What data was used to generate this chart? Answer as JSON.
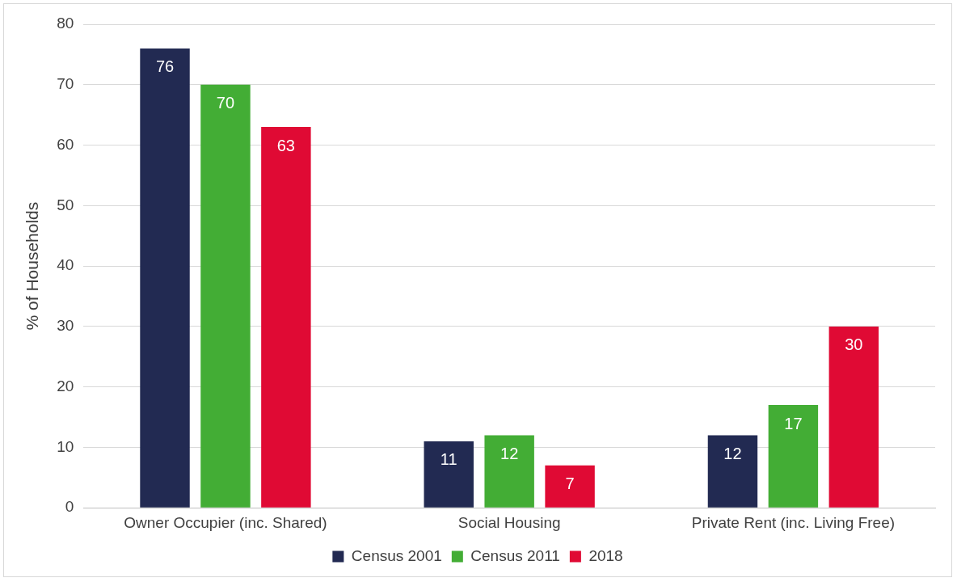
{
  "chart_data": {
    "type": "bar",
    "ylabel": "% of Households",
    "categories": [
      "Owner Occupier (inc. Shared)",
      "Social Housing",
      "Private Rent (inc. Living Free)"
    ],
    "series": [
      {
        "name": "Census 2001",
        "color": "#222a52",
        "values": [
          76,
          11,
          12
        ]
      },
      {
        "name": "Census 2011",
        "color": "#43ad35",
        "values": [
          70,
          12,
          17
        ]
      },
      {
        "name": "2018",
        "color": "#e00a34",
        "values": [
          63,
          7,
          30
        ]
      }
    ],
    "ylim": [
      0,
      80
    ],
    "yticks": [
      0,
      10,
      20,
      30,
      40,
      50,
      60,
      70,
      80
    ],
    "grid": "y",
    "legend": "bottom",
    "data_labels": true
  }
}
